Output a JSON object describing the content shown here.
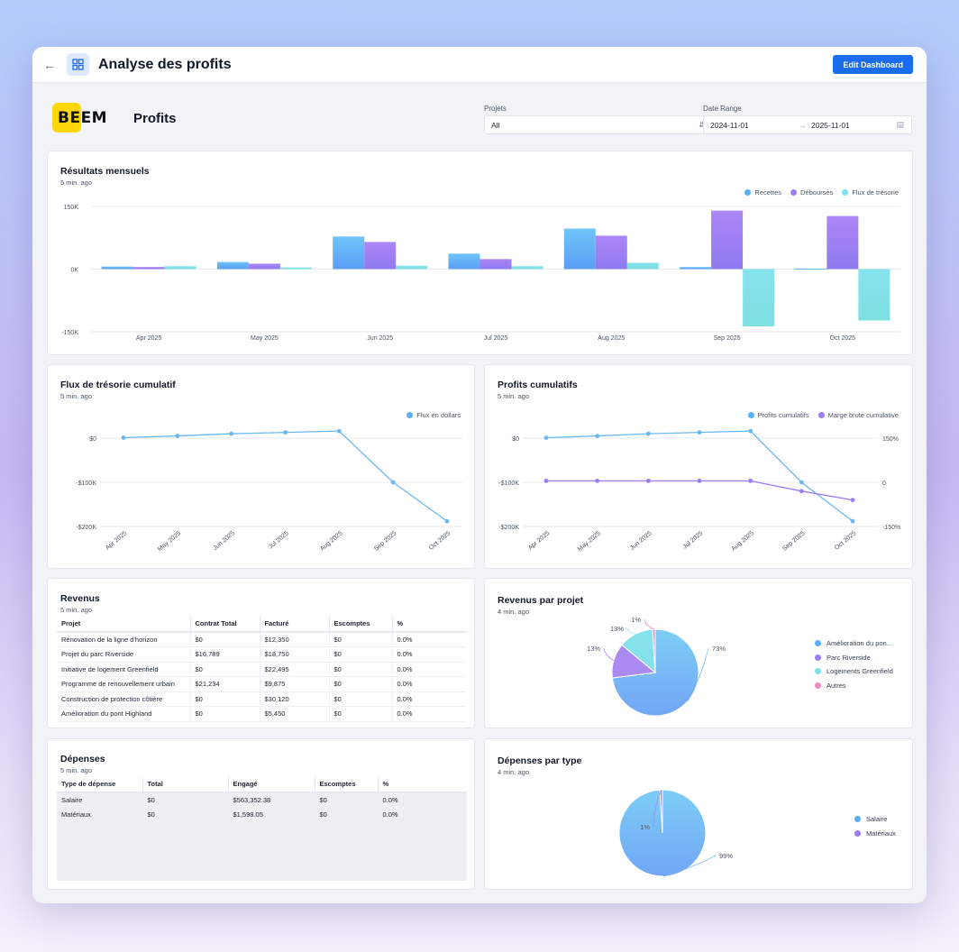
{
  "app": {
    "title": "Analyse des profits",
    "edit_label": "Edit Dashboard"
  },
  "header": {
    "logo_text": "BEEM",
    "page_title": "Profits",
    "projects_label": "Projets",
    "projects_value": "All",
    "date_label": "Date Range",
    "date_start": "2024-11-01",
    "date_end": "2025-11-01"
  },
  "colors": {
    "recettes": "#5aaef6",
    "debourses": "#9d7cf3",
    "flux": "#7ee1ea",
    "accent": "#1a6df0",
    "pink": "#f08bc8"
  },
  "monthly": {
    "title": "Résultats mensuels",
    "sub": "5 min. ago",
    "chart_data": {
      "type": "bar",
      "categories": [
        "Apr 2025",
        "May 2025",
        "Jun 2025",
        "Jul 2025",
        "Aug 2025",
        "Sep 2025",
        "Oct 2025"
      ],
      "series": [
        {
          "name": "Recettes",
          "values": [
            6000,
            17000,
            78000,
            37000,
            97000,
            5000,
            1000
          ]
        },
        {
          "name": "Déboursés",
          "values": [
            5000,
            13000,
            65000,
            24000,
            80000,
            140000,
            127000
          ]
        },
        {
          "name": "Flux de trésorie",
          "values": [
            7000,
            4000,
            8000,
            7000,
            15000,
            -137000,
            -123000
          ]
        }
      ],
      "ylim": [
        -150000,
        150000
      ],
      "yticks": [
        "150K",
        "0K",
        "-150K"
      ]
    }
  },
  "cash": {
    "title": "Flux de trésorie cumulatif",
    "sub": "5 min. ago",
    "chart_data": {
      "type": "line",
      "categories": [
        "Apr 2025",
        "May 2025",
        "Jun 2025",
        "Jul 2025",
        "Aug 2025",
        "Sep 2025",
        "Oct 2025"
      ],
      "series": [
        {
          "name": "Flux en dollars",
          "values": [
            1000,
            5000,
            10000,
            13000,
            16000,
            -100000,
            -188000
          ]
        }
      ],
      "ylim": [
        -200000,
        0
      ],
      "yticks": [
        "$0",
        "-$100K",
        "-$200K"
      ]
    }
  },
  "profits": {
    "title": "Profits cumulatifs",
    "sub": "5 min. ago",
    "chart_data": {
      "type": "line",
      "categories": [
        "Apr 2025",
        "May 2025",
        "Jun 2025",
        "Jul 2025",
        "Aug 2025",
        "Sep 2025",
        "Oct 2025"
      ],
      "series": [
        {
          "name": "Profits cumulatifs",
          "axis": "left",
          "values": [
            1000,
            5000,
            10000,
            13000,
            16000,
            -100000,
            -188000
          ]
        },
        {
          "name": "Marge brute cumulative",
          "axis": "right",
          "values": [
            5,
            5,
            5,
            5,
            5,
            -30,
            -60
          ]
        }
      ],
      "ylim": [
        -200000,
        0
      ],
      "ylim_right": [
        -150,
        150
      ],
      "yticks": [
        "$0",
        "-$100K",
        "-$200K"
      ],
      "yticks_right": [
        "150%",
        "0",
        "-150%"
      ]
    }
  },
  "revenus": {
    "title": "Revenus",
    "sub": "5 min. ago",
    "columns": [
      "Projet",
      "Contrat Total",
      "Facturé",
      "Escomptes",
      "%"
    ],
    "rows": [
      [
        "Rénovation de la ligne d'horizon",
        "$0",
        "$12,350",
        "$0",
        "0.0%"
      ],
      [
        "Projet du parc Riverside",
        "$16,789",
        "$18,750",
        "$0",
        "0.0%"
      ],
      [
        "Initiative de logement Greenfield",
        "$0",
        "$22,495",
        "$0",
        "0.0%"
      ],
      [
        "Programme de renouvellement urbain",
        "$21,234",
        "$9,875",
        "$0",
        "0.0%"
      ],
      [
        "Construction de protection côtière",
        "$0",
        "$30,120",
        "$0",
        "0.0%"
      ],
      [
        "Amélioration du pont Highland",
        "$0",
        "$5,450",
        "$0",
        "0.0%"
      ]
    ]
  },
  "revparproj": {
    "title": "Revenus par projet",
    "sub": "4 min. ago",
    "chart_data": {
      "type": "pie",
      "labels": [
        "Amélioration du pon...",
        "Parc Riverside",
        "Logements Greenfield",
        "Autres"
      ],
      "values": [
        73,
        13,
        13,
        1
      ],
      "value_labels": [
        "73%",
        "13%",
        "13%",
        "1%"
      ]
    }
  },
  "depenses": {
    "title": "Dépenses",
    "sub": "5 min. ago",
    "columns": [
      "Type de dépense",
      "Total",
      "Engagé",
      "Escomptes",
      "%"
    ],
    "rows": [
      [
        "Salaire",
        "$0",
        "$563,352.38",
        "$0",
        "0.0%"
      ],
      [
        "Matériaux",
        "$0",
        "$1,598.05",
        "$0",
        "0.0%"
      ]
    ]
  },
  "deptype": {
    "title": "Dépenses par type",
    "sub": "4 min. ago",
    "chart_data": {
      "type": "pie",
      "labels": [
        "Salaire",
        "Matériaux"
      ],
      "values": [
        99,
        1
      ],
      "value_labels": [
        "99%",
        "1%"
      ]
    }
  }
}
